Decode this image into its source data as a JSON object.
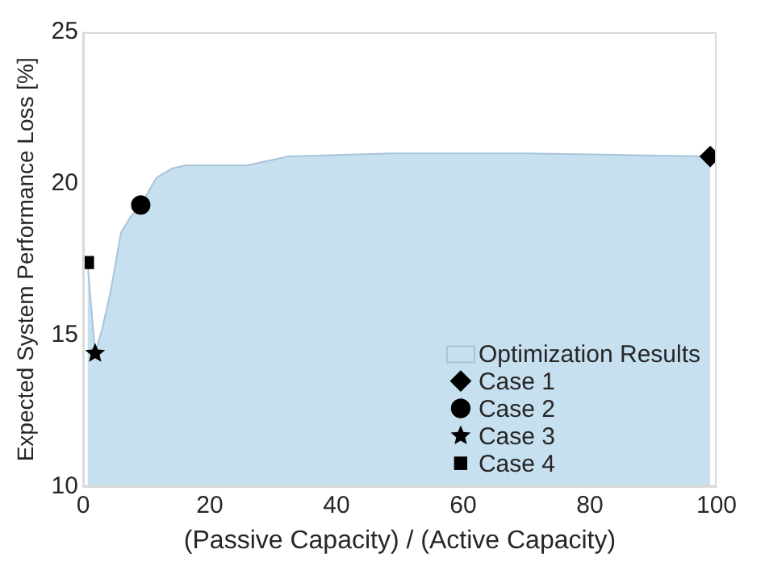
{
  "chart_data": {
    "type": "area",
    "xlabel": "(Passive Capacity) / (Active Capacity)",
    "ylabel": "Expected System Performance Loss [%]",
    "xlim": [
      0,
      100
    ],
    "xticks": [
      0,
      20,
      40,
      60,
      80,
      100
    ],
    "ylim": [
      10,
      25
    ],
    "yticks": [
      10,
      15,
      20,
      25
    ],
    "grid": false,
    "legend": "bottom right",
    "series": [
      {
        "name": "Optimization Results",
        "color": "#c6e0ef",
        "x": [
          0.7,
          1.9,
          3,
          4.3,
          6,
          7.5,
          9.1,
          11.6,
          14,
          16.1,
          20.4,
          25.8,
          32.4,
          48.7,
          70,
          85,
          99
        ],
        "values": [
          17.4,
          14.4,
          15.2,
          16.4,
          18.4,
          18.9,
          19.3,
          20.2,
          20.5,
          20.6,
          20.6,
          20.6,
          20.9,
          21.0,
          21.0,
          20.95,
          20.9
        ]
      },
      {
        "name": "Case 1",
        "type": "scatter",
        "marker": "diamond",
        "color": "#000000",
        "x": [
          99
        ],
        "values": [
          20.9
        ]
      },
      {
        "name": "Case 2",
        "type": "scatter",
        "marker": "circle",
        "color": "#000000",
        "x": [
          9.1
        ],
        "values": [
          19.3
        ]
      },
      {
        "name": "Case 3",
        "type": "scatter",
        "marker": "star",
        "color": "#000000",
        "x": [
          1.9
        ],
        "values": [
          14.4
        ]
      },
      {
        "name": "Case 4",
        "type": "scatter",
        "marker": "square",
        "color": "#000000",
        "x": [
          0.7
        ],
        "values": [
          17.4
        ]
      }
    ]
  }
}
